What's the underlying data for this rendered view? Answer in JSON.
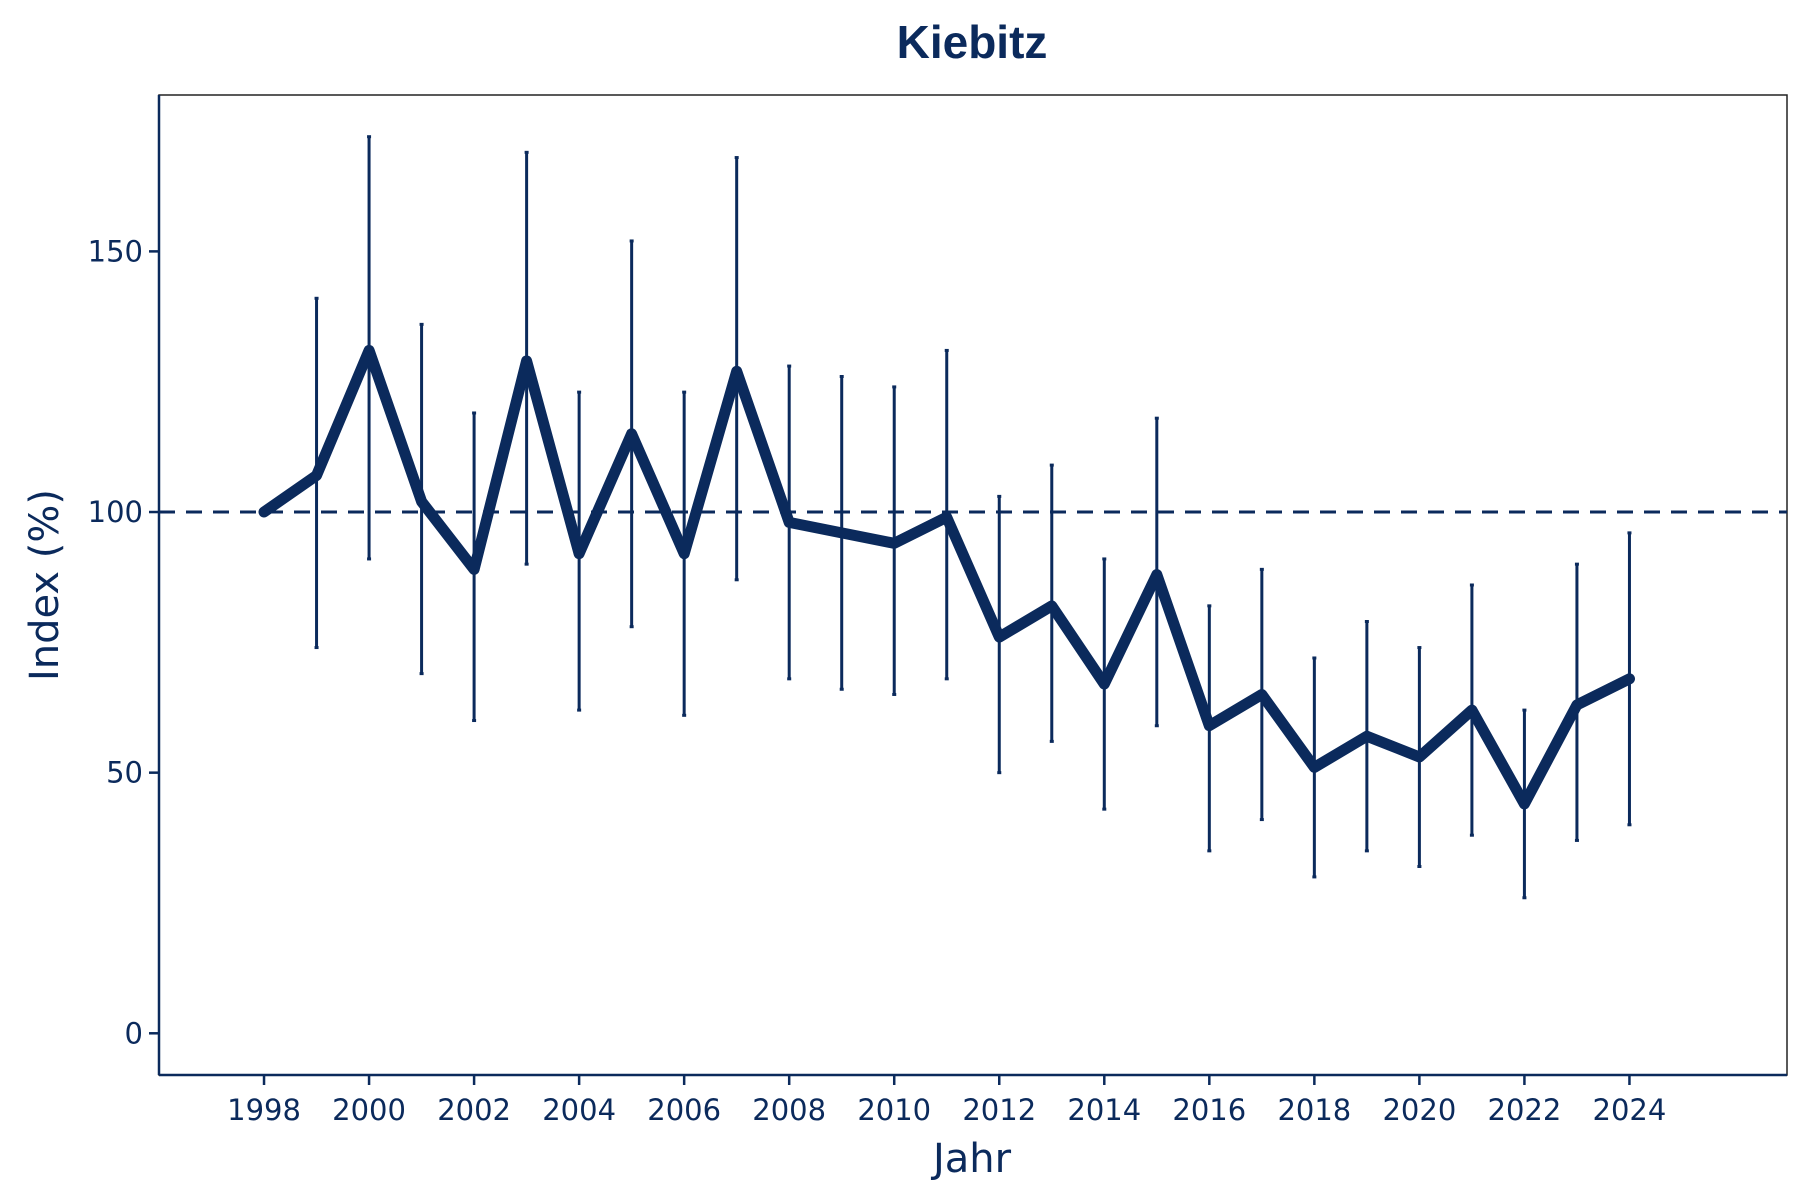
{
  "chart_data": {
    "type": "line",
    "title": "Kiebitz",
    "xlabel": "Jahr",
    "ylabel": "Index (%)",
    "xlim": [
      1996,
      2027
    ],
    "ylim": [
      -8,
      180
    ],
    "x_ticks": [
      1998,
      2000,
      2002,
      2004,
      2006,
      2008,
      2010,
      2012,
      2014,
      2016,
      2018,
      2020,
      2022,
      2024
    ],
    "y_ticks": [
      0,
      50,
      100,
      150
    ],
    "reference_line": 100,
    "grid": false,
    "legend": "none",
    "color": "#0b2a5c",
    "x": [
      1998,
      1999,
      2000,
      2001,
      2002,
      2003,
      2004,
      2005,
      2006,
      2007,
      2008,
      2009,
      2010,
      2011,
      2012,
      2013,
      2014,
      2015,
      2016,
      2017,
      2018,
      2019,
      2020,
      2021,
      2022,
      2023,
      2024
    ],
    "values": [
      100,
      107,
      131,
      102,
      89,
      129,
      92,
      115,
      92,
      127,
      98,
      96,
      94,
      99,
      76,
      82,
      67,
      88,
      59,
      65,
      51,
      57,
      53,
      62,
      44,
      63,
      68
    ],
    "lower": [
      null,
      74,
      91,
      69,
      60,
      90,
      62,
      78,
      61,
      87,
      68,
      66,
      65,
      68,
      50,
      56,
      43,
      59,
      35,
      41,
      30,
      35,
      32,
      38,
      26,
      37,
      40
    ],
    "upper": [
      null,
      141,
      172,
      136,
      119,
      169,
      123,
      152,
      123,
      168,
      128,
      126,
      124,
      131,
      103,
      109,
      91,
      118,
      82,
      89,
      72,
      79,
      74,
      86,
      62,
      90,
      96
    ]
  }
}
